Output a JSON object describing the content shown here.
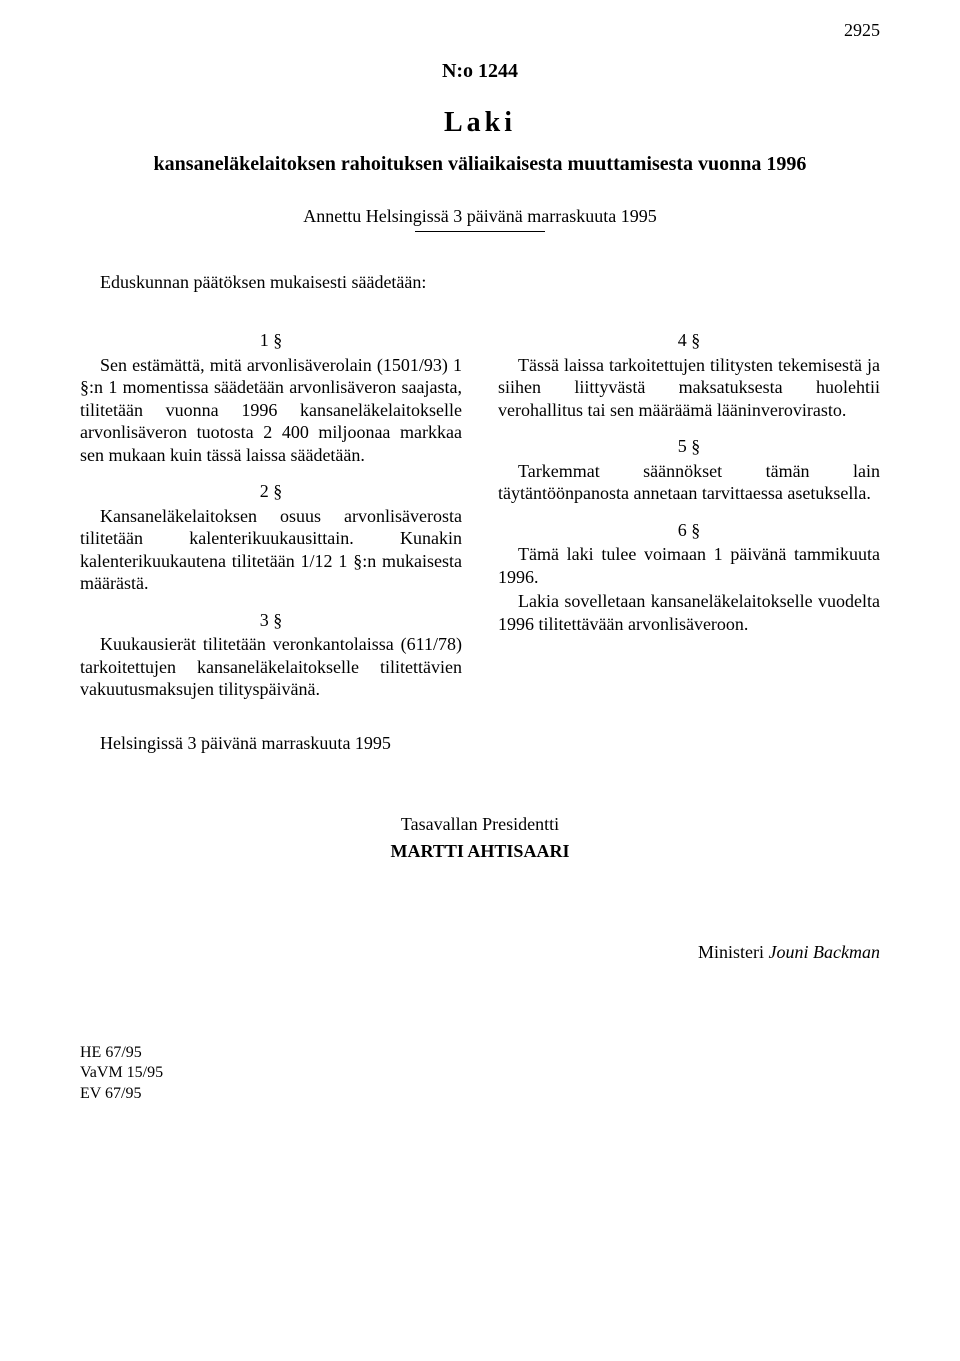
{
  "page_number": "2925",
  "doc_number": "N:o 1244",
  "doc_type": "Laki",
  "doc_title": "kansaneläkelaitoksen rahoituksen väliaikaisesta muuttamisesta vuonna 1996",
  "given_at": "Annettu Helsingissä 3 päivänä marraskuuta 1995",
  "intro": "Eduskunnan päätöksen mukaisesti säädetään:",
  "sections": {
    "s1": {
      "num": "1 §",
      "text": "Sen estämättä, mitä arvonlisäverolain (1501/93) 1 §:n 1 momentissa säädetään arvonlisäveron saajasta, tilitetään vuonna 1996 kansaneläkelaitokselle arvonlisäveron tuotosta 2 400 miljoonaa markkaa sen mukaan kuin tässä laissa säädetään."
    },
    "s2": {
      "num": "2 §",
      "text": "Kansaneläkelaitoksen osuus arvonlisäverosta tilitetään kalenterikuukausittain. Kunakin kalenterikuukautena tilitetään 1/12 1 §:n mukaisesta määrästä."
    },
    "s3": {
      "num": "3 §",
      "text": "Kuukausierät tilitetään veronkantolaissa (611/78) tarkoitettujen kansaneläkelaitokselle tilitettävien vakuutusmaksujen tilityspäivänä."
    },
    "s4": {
      "num": "4 §",
      "text": "Tässä laissa tarkoitettujen tilitysten tekemisestä ja siihen liittyvästä maksatuksesta huolehtii verohallitus tai sen määräämä lääninverovirasto."
    },
    "s5": {
      "num": "5 §",
      "text": "Tarkemmat säännökset tämän lain täytäntöönpanosta annetaan tarvittaessa asetuksella."
    },
    "s6": {
      "num": "6 §",
      "text1": "Tämä laki tulee voimaan 1 päivänä tammikuuta 1996.",
      "text2": "Lakia sovelletaan kansaneläkelaitokselle vuodelta 1996 tilitettävään arvonlisäveroon."
    }
  },
  "closing": "Helsingissä 3 päivänä marraskuuta 1995",
  "president_title": "Tasavallan Presidentti",
  "president_name": "MARTTI AHTISAARI",
  "minister_label": "Ministeri",
  "minister_name": "Jouni Backman",
  "refs": [
    "HE 67/95",
    "VaVM 15/95",
    "EV 67/95"
  ]
}
